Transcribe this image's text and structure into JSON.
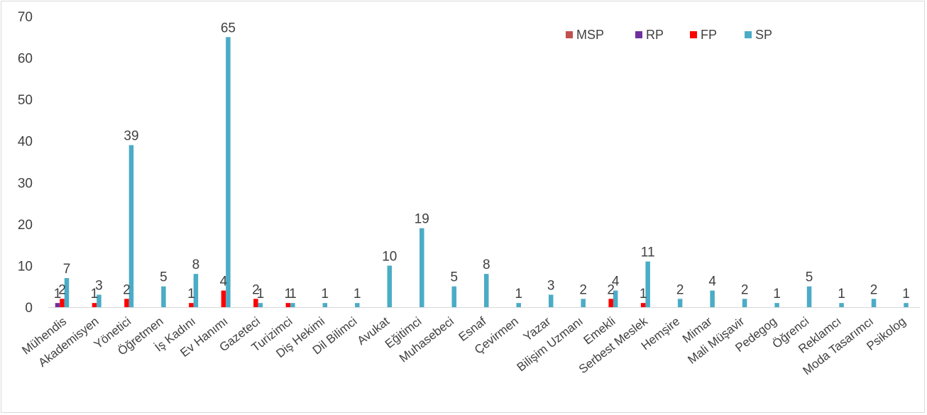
{
  "chart_data": {
    "type": "bar",
    "title": "",
    "xlabel": "",
    "ylabel": "",
    "ylim": [
      0,
      70
    ],
    "yticks": [
      0,
      10,
      20,
      30,
      40,
      50,
      60,
      70
    ],
    "grid": false,
    "legend_position": "top-right",
    "categories": [
      "Mühendis",
      "Akademisyen",
      "Yönetici",
      "Öğretmen",
      "İş Kadını",
      "Ev Hanımı",
      "Gazeteci",
      "Turizimci",
      "Diş Hekimi",
      "Dil Bilimci",
      "Avukat",
      "Eğitimci",
      "Muhasebeci",
      "Esnaf",
      "Çevirmen",
      "Yazar",
      "Bilişim Uzmanı",
      "Emekli",
      "Serbest Meslek",
      "Hemşire",
      "Mimar",
      "Mali Müşavir",
      "Pedegog",
      "Öğrenci",
      "Reklamcı",
      "Moda Tasarımcı",
      "Psikolog"
    ],
    "series": [
      {
        "name": "MSP",
        "color": "#c0504d",
        "values": [
          null,
          null,
          null,
          null,
          null,
          null,
          null,
          null,
          null,
          null,
          null,
          null,
          null,
          null,
          null,
          null,
          null,
          null,
          null,
          null,
          null,
          null,
          null,
          null,
          null,
          null,
          null
        ]
      },
      {
        "name": "RP",
        "color": "#7030a0",
        "values": [
          1,
          null,
          null,
          null,
          null,
          null,
          null,
          null,
          null,
          null,
          null,
          null,
          null,
          null,
          null,
          null,
          null,
          null,
          null,
          null,
          null,
          null,
          null,
          null,
          null,
          null,
          null
        ]
      },
      {
        "name": "FP",
        "color": "#ff0000",
        "values": [
          2,
          1,
          2,
          null,
          1,
          4,
          2,
          1,
          null,
          null,
          null,
          null,
          null,
          null,
          null,
          null,
          null,
          2,
          1,
          null,
          null,
          null,
          null,
          null,
          null,
          null,
          null
        ]
      },
      {
        "name": "SP",
        "color": "#4bacc6",
        "values": [
          7,
          3,
          39,
          5,
          8,
          65,
          1,
          1,
          1,
          1,
          10,
          19,
          5,
          8,
          1,
          3,
          2,
          4,
          11,
          2,
          4,
          2,
          1,
          5,
          1,
          2,
          1
        ]
      }
    ]
  }
}
